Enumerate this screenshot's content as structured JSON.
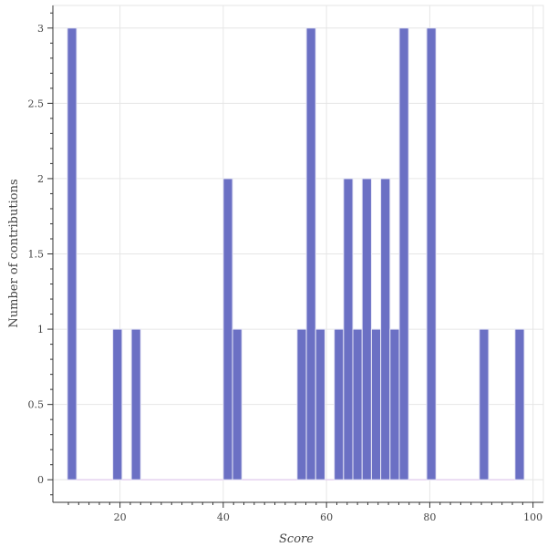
{
  "chart_data": {
    "type": "bar",
    "title": "",
    "xlabel": "Score",
    "ylabel": "Number of contributions",
    "xlim": [
      7,
      102
    ],
    "ylim": [
      -0.15,
      3.15
    ],
    "grid": true,
    "bar_color": "#6b70c4",
    "bar_edge_color": "#e6e6f5",
    "baseline_color": "#e6d2f0",
    "grid_color": "#e6e6e6",
    "x_ticks": [
      "20",
      "40",
      "60",
      "80",
      "100"
    ],
    "x_tick_values": [
      20,
      40,
      60,
      80,
      100
    ],
    "y_ticks": [
      "0",
      "0.5",
      "1",
      "1.5",
      "2",
      "2.5",
      "3"
    ],
    "y_tick_values": [
      0,
      0.5,
      1,
      1.5,
      2,
      2.5,
      3
    ],
    "bins": [
      {
        "start": 9.8,
        "end": 11.6,
        "count": 3
      },
      {
        "start": 18.6,
        "end": 20.4,
        "count": 1
      },
      {
        "start": 22.2,
        "end": 24.0,
        "count": 1
      },
      {
        "start": 40.0,
        "end": 41.8,
        "count": 2
      },
      {
        "start": 41.8,
        "end": 43.6,
        "count": 1
      },
      {
        "start": 54.3,
        "end": 56.1,
        "count": 1
      },
      {
        "start": 56.1,
        "end": 57.9,
        "count": 3
      },
      {
        "start": 57.9,
        "end": 59.7,
        "count": 1
      },
      {
        "start": 61.5,
        "end": 63.3,
        "count": 1
      },
      {
        "start": 63.3,
        "end": 65.1,
        "count": 2
      },
      {
        "start": 65.1,
        "end": 66.9,
        "count": 1
      },
      {
        "start": 66.9,
        "end": 68.7,
        "count": 2
      },
      {
        "start": 68.7,
        "end": 70.5,
        "count": 1
      },
      {
        "start": 70.5,
        "end": 72.3,
        "count": 2
      },
      {
        "start": 72.3,
        "end": 74.1,
        "count": 1
      },
      {
        "start": 74.1,
        "end": 75.9,
        "count": 3
      },
      {
        "start": 79.4,
        "end": 81.2,
        "count": 3
      },
      {
        "start": 89.6,
        "end": 91.4,
        "count": 1
      },
      {
        "start": 96.5,
        "end": 98.3,
        "count": 1
      }
    ]
  }
}
